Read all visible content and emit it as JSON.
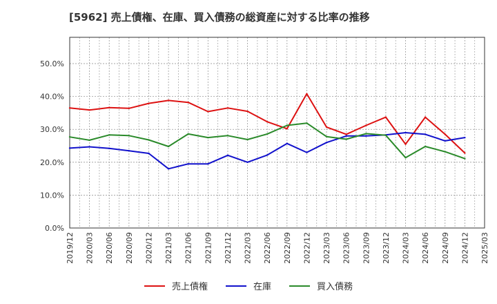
{
  "chart_data": {
    "type": "line",
    "title": "[5962]  売上債権、在庫、買入債務の総資産に対する比率の推移",
    "xlabel": "",
    "ylabel": "",
    "ylim": [
      0,
      0.58
    ],
    "y_ticks": [
      0,
      0.1,
      0.2,
      0.3,
      0.4,
      0.5
    ],
    "y_tick_labels": [
      "0.0%",
      "10.0%",
      "20.0%",
      "30.0%",
      "40.0%",
      "50.0%"
    ],
    "categories": [
      "2019/12",
      "2020/03",
      "2020/06",
      "2020/09",
      "2020/12",
      "2021/03",
      "2021/06",
      "2021/09",
      "2021/12",
      "2022/03",
      "2022/06",
      "2022/09",
      "2022/12",
      "2023/03",
      "2023/06",
      "2023/09",
      "2023/12",
      "2024/03",
      "2024/06",
      "2024/09",
      "2024/12",
      "2025/03"
    ],
    "grid": true,
    "legend_position": "bottom",
    "series": [
      {
        "name": "売上債権",
        "color": "#dd1111",
        "values": [
          0.365,
          0.359,
          0.366,
          0.364,
          0.379,
          0.388,
          0.382,
          0.354,
          0.365,
          0.355,
          0.323,
          0.302,
          0.408,
          0.307,
          0.285,
          0.312,
          0.337,
          0.255,
          0.337,
          0.285,
          0.228,
          null
        ]
      },
      {
        "name": "在庫",
        "color": "#1111cc",
        "values": [
          0.243,
          0.247,
          0.242,
          0.235,
          0.227,
          0.18,
          0.195,
          0.195,
          0.221,
          0.2,
          0.222,
          0.257,
          0.23,
          0.26,
          0.28,
          0.28,
          0.283,
          0.29,
          0.285,
          0.265,
          0.275,
          null
        ]
      },
      {
        "name": "買入債務",
        "color": "#2a8a2a",
        "values": [
          0.277,
          0.267,
          0.283,
          0.281,
          0.268,
          0.248,
          0.286,
          0.275,
          0.281,
          0.269,
          0.286,
          0.312,
          0.319,
          0.278,
          0.27,
          0.287,
          0.282,
          0.214,
          0.248,
          0.232,
          0.211,
          null
        ]
      }
    ]
  }
}
